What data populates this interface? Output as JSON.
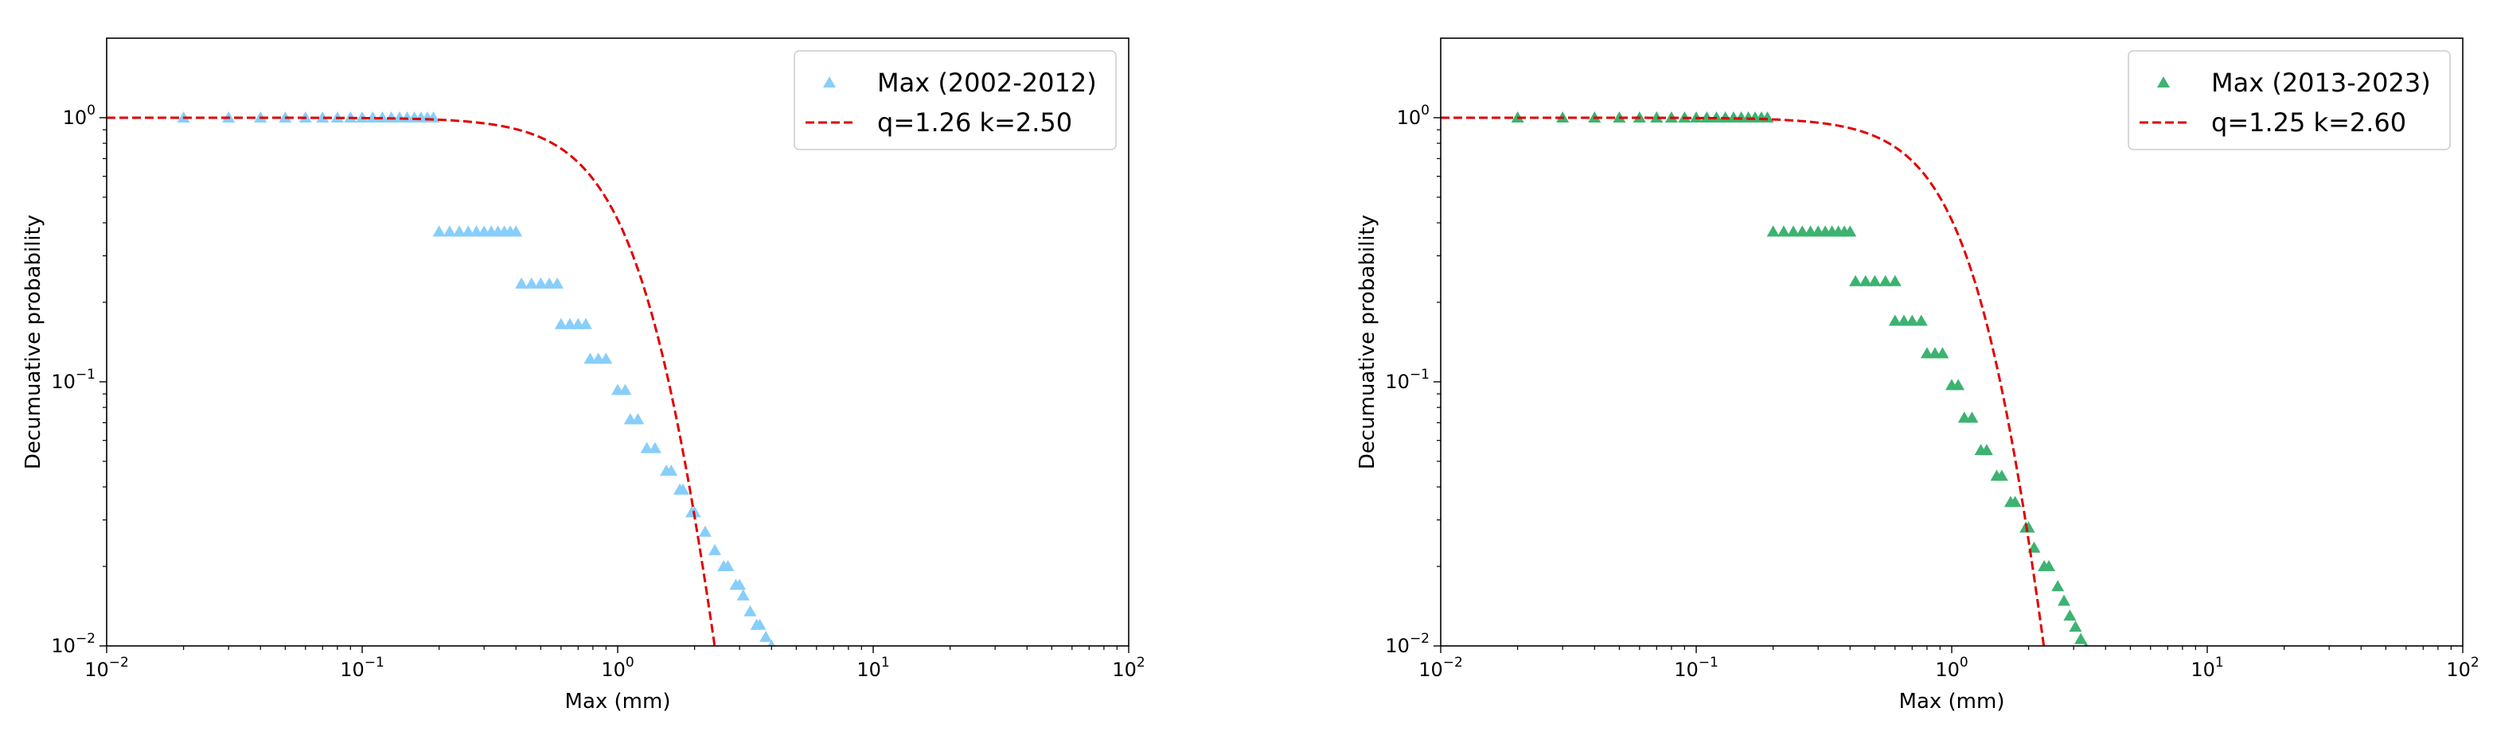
{
  "chart_data": [
    {
      "type": "scatter",
      "xlabel": "Max (mm)",
      "ylabel": "Decumuative probability",
      "xscale": "log",
      "yscale": "log",
      "xlim": [
        0.01,
        100
      ],
      "ylim": [
        0.01,
        2.0
      ],
      "x_ticks": [
        {
          "value": 0.01,
          "base": "10",
          "exp": "−2"
        },
        {
          "value": 0.1,
          "base": "10",
          "exp": "−1"
        },
        {
          "value": 1,
          "base": "10",
          "exp": "0"
        },
        {
          "value": 10,
          "base": "10",
          "exp": "1"
        },
        {
          "value": 100,
          "base": "10",
          "exp": "2"
        }
      ],
      "y_ticks": [
        {
          "value": 0.01,
          "base": "10",
          "exp": "−2"
        },
        {
          "value": 0.1,
          "base": "10",
          "exp": "−1"
        },
        {
          "value": 1,
          "base": "10",
          "exp": "0"
        }
      ],
      "legend_position": "top-right",
      "grid": false,
      "series": [
        {
          "name": "Max (2002-2012)",
          "kind": "scatter",
          "marker": "triangle",
          "color": "#87cefa",
          "points": [
            [
              0.02,
              1.0
            ],
            [
              0.03,
              1.0
            ],
            [
              0.04,
              1.0
            ],
            [
              0.05,
              1.0
            ],
            [
              0.06,
              1.0
            ],
            [
              0.07,
              1.0
            ],
            [
              0.08,
              1.0
            ],
            [
              0.09,
              1.0
            ],
            [
              0.1,
              1.0
            ],
            [
              0.11,
              1.0
            ],
            [
              0.12,
              1.0
            ],
            [
              0.13,
              1.0
            ],
            [
              0.14,
              1.0
            ],
            [
              0.15,
              1.0
            ],
            [
              0.16,
              1.0
            ],
            [
              0.17,
              1.0
            ],
            [
              0.18,
              1.0
            ],
            [
              0.19,
              1.0
            ],
            [
              0.2,
              0.37
            ],
            [
              0.22,
              0.37
            ],
            [
              0.24,
              0.37
            ],
            [
              0.26,
              0.37
            ],
            [
              0.28,
              0.37
            ],
            [
              0.3,
              0.37
            ],
            [
              0.32,
              0.37
            ],
            [
              0.34,
              0.37
            ],
            [
              0.36,
              0.37
            ],
            [
              0.38,
              0.37
            ],
            [
              0.4,
              0.37
            ],
            [
              0.42,
              0.235
            ],
            [
              0.46,
              0.235
            ],
            [
              0.5,
              0.235
            ],
            [
              0.54,
              0.235
            ],
            [
              0.58,
              0.235
            ],
            [
              0.6,
              0.165
            ],
            [
              0.65,
              0.165
            ],
            [
              0.7,
              0.165
            ],
            [
              0.75,
              0.165
            ],
            [
              0.78,
              0.122
            ],
            [
              0.84,
              0.122
            ],
            [
              0.9,
              0.122
            ],
            [
              1.0,
              0.093
            ],
            [
              1.07,
              0.093
            ],
            [
              1.12,
              0.072
            ],
            [
              1.2,
              0.072
            ],
            [
              1.3,
              0.056
            ],
            [
              1.4,
              0.056
            ],
            [
              1.55,
              0.046
            ],
            [
              1.62,
              0.046
            ],
            [
              1.75,
              0.039
            ],
            [
              1.8,
              0.039
            ],
            [
              1.95,
              0.032
            ],
            [
              2.0,
              0.032
            ],
            [
              2.2,
              0.027
            ],
            [
              2.4,
              0.023
            ],
            [
              2.6,
              0.02
            ],
            [
              2.7,
              0.02
            ],
            [
              2.9,
              0.017
            ],
            [
              3.0,
              0.017
            ],
            [
              3.1,
              0.0155
            ],
            [
              3.3,
              0.0135
            ],
            [
              3.5,
              0.012
            ],
            [
              3.6,
              0.012
            ],
            [
              3.8,
              0.0108
            ],
            [
              4.0,
              0.01
            ]
          ]
        },
        {
          "name": "q=1.26 k=2.50",
          "kind": "line",
          "style": "dashed",
          "color": "#e00000",
          "q": 1.26,
          "k": 2.5
        }
      ]
    },
    {
      "type": "scatter",
      "xlabel": "Max (mm)",
      "ylabel": "Decumuative probability",
      "xscale": "log",
      "yscale": "log",
      "xlim": [
        0.01,
        100
      ],
      "ylim": [
        0.01,
        2.0
      ],
      "x_ticks": [
        {
          "value": 0.01,
          "base": "10",
          "exp": "−2"
        },
        {
          "value": 0.1,
          "base": "10",
          "exp": "−1"
        },
        {
          "value": 1,
          "base": "10",
          "exp": "0"
        },
        {
          "value": 10,
          "base": "10",
          "exp": "1"
        },
        {
          "value": 100,
          "base": "10",
          "exp": "2"
        }
      ],
      "y_ticks": [
        {
          "value": 0.01,
          "base": "10",
          "exp": "−2"
        },
        {
          "value": 0.1,
          "base": "10",
          "exp": "−1"
        },
        {
          "value": 1,
          "base": "10",
          "exp": "0"
        }
      ],
      "legend_position": "top-right",
      "grid": false,
      "series": [
        {
          "name": "Max (2013-2023)",
          "kind": "scatter",
          "marker": "triangle",
          "color": "#3cb371",
          "points": [
            [
              0.02,
              1.0
            ],
            [
              0.03,
              1.0
            ],
            [
              0.04,
              1.0
            ],
            [
              0.05,
              1.0
            ],
            [
              0.06,
              1.0
            ],
            [
              0.07,
              1.0
            ],
            [
              0.08,
              1.0
            ],
            [
              0.09,
              1.0
            ],
            [
              0.1,
              1.0
            ],
            [
              0.11,
              1.0
            ],
            [
              0.12,
              1.0
            ],
            [
              0.13,
              1.0
            ],
            [
              0.14,
              1.0
            ],
            [
              0.15,
              1.0
            ],
            [
              0.16,
              1.0
            ],
            [
              0.17,
              1.0
            ],
            [
              0.18,
              1.0
            ],
            [
              0.19,
              1.0
            ],
            [
              0.2,
              0.37
            ],
            [
              0.22,
              0.37
            ],
            [
              0.24,
              0.37
            ],
            [
              0.26,
              0.37
            ],
            [
              0.28,
              0.37
            ],
            [
              0.3,
              0.37
            ],
            [
              0.32,
              0.37
            ],
            [
              0.34,
              0.37
            ],
            [
              0.36,
              0.37
            ],
            [
              0.38,
              0.37
            ],
            [
              0.4,
              0.37
            ],
            [
              0.42,
              0.24
            ],
            [
              0.46,
              0.24
            ],
            [
              0.5,
              0.24
            ],
            [
              0.55,
              0.24
            ],
            [
              0.6,
              0.24
            ],
            [
              0.6,
              0.17
            ],
            [
              0.65,
              0.17
            ],
            [
              0.7,
              0.17
            ],
            [
              0.76,
              0.17
            ],
            [
              0.8,
              0.128
            ],
            [
              0.86,
              0.128
            ],
            [
              0.92,
              0.128
            ],
            [
              1.0,
              0.097
            ],
            [
              1.06,
              0.097
            ],
            [
              1.12,
              0.073
            ],
            [
              1.2,
              0.073
            ],
            [
              1.3,
              0.055
            ],
            [
              1.37,
              0.055
            ],
            [
              1.5,
              0.044
            ],
            [
              1.57,
              0.044
            ],
            [
              1.7,
              0.035
            ],
            [
              1.77,
              0.035
            ],
            [
              1.95,
              0.028
            ],
            [
              2.0,
              0.028
            ],
            [
              2.1,
              0.0235
            ],
            [
              2.3,
              0.02
            ],
            [
              2.4,
              0.02
            ],
            [
              2.6,
              0.0168
            ],
            [
              2.75,
              0.0148
            ],
            [
              2.9,
              0.013
            ],
            [
              3.05,
              0.0118
            ],
            [
              3.2,
              0.0106
            ],
            [
              3.35,
              0.0098
            ]
          ]
        },
        {
          "name": "q=1.25 k=2.60",
          "kind": "line",
          "style": "dashed",
          "color": "#e00000",
          "q": 1.25,
          "k": 2.6
        }
      ]
    }
  ]
}
